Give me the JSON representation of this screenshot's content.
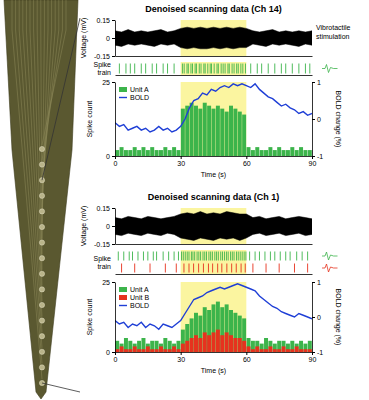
{
  "chart_data": [
    {
      "type": "area",
      "title": "Denoised scanning data (Ch 14)",
      "y_label": "Voltage (mV)",
      "color": "#000000",
      "xlim": [
        0,
        90
      ],
      "ylim": [
        -0.15,
        0.15
      ],
      "yticks": [
        -0.15,
        0,
        0.15
      ],
      "tick_labels": "y",
      "annotations": [
        {
          "text": "Vibrotactile stimulation",
          "x": [
            30,
            60
          ],
          "color": "#fbf5a0"
        }
      ],
      "x": [
        0,
        3,
        6,
        9,
        12,
        15,
        18,
        21,
        24,
        27,
        30,
        33,
        36,
        39,
        42,
        45,
        48,
        51,
        54,
        57,
        60,
        63,
        66,
        69,
        72,
        75,
        78,
        81,
        84,
        87,
        90
      ],
      "upper": [
        0.06,
        0.05,
        0.07,
        0.05,
        0.06,
        0.05,
        0.06,
        0.07,
        0.05,
        0.06,
        0.08,
        0.09,
        0.08,
        0.09,
        0.08,
        0.09,
        0.08,
        0.09,
        0.08,
        0.09,
        0.08,
        0.06,
        0.05,
        0.06,
        0.07,
        0.05,
        0.06,
        0.05,
        0.06,
        0.05,
        0.06
      ],
      "lower": [
        -0.06,
        -0.07,
        -0.05,
        -0.06,
        -0.05,
        -0.06,
        -0.07,
        -0.05,
        -0.06,
        -0.05,
        -0.08,
        -0.09,
        -0.08,
        -0.09,
        -0.09,
        -0.08,
        -0.09,
        -0.08,
        -0.09,
        -0.08,
        -0.08,
        -0.05,
        -0.06,
        -0.07,
        -0.05,
        -0.06,
        -0.05,
        -0.06,
        -0.07,
        -0.05,
        -0.06
      ]
    },
    {
      "type": "event",
      "y_label": "Spike train",
      "xlim": [
        0,
        90
      ],
      "tick_labels": false,
      "annotations": [
        {
          "x": [
            30,
            60
          ],
          "color": "#fbf5a0"
        }
      ],
      "series": [
        {
          "color": "#3cb44b",
          "x": [
            2,
            5,
            7,
            9,
            12,
            14,
            17,
            19,
            22,
            24,
            27,
            30.8,
            31.6,
            32.9,
            33.5,
            34.7,
            35.4,
            36.6,
            37.2,
            38.5,
            39.3,
            40.6,
            41.2,
            42.4,
            43.5,
            44.1,
            45.3,
            46.6,
            47.2,
            48.5,
            49.4,
            50.3,
            51.6,
            52.2,
            53.5,
            54.4,
            55.6,
            56.3,
            57.5,
            58.4,
            59.6,
            62,
            65,
            67,
            70,
            73,
            76,
            78,
            81,
            84,
            87,
            89
          ]
        }
      ]
    },
    {
      "type": "bar",
      "x_label": "Time (s)",
      "y_label": "Spike count",
      "y2_label": "BOLD change (%)",
      "xlim": [
        0,
        90
      ],
      "xticks": [
        0,
        30,
        60,
        90
      ],
      "ylim": [
        0,
        25
      ],
      "yticks": [
        0,
        25
      ],
      "y2lim": [
        -1,
        1
      ],
      "y2ticks": [
        -1,
        0,
        1
      ],
      "legend": "upper left",
      "stacked": false,
      "annotations": [
        {
          "x": [
            30,
            60
          ],
          "color": "#fbf5a0"
        }
      ],
      "bins": [
        0,
        2,
        4,
        6,
        8,
        10,
        12,
        14,
        16,
        18,
        20,
        22,
        24,
        26,
        28,
        30,
        32,
        34,
        36,
        38,
        40,
        42,
        44,
        46,
        48,
        50,
        52,
        54,
        56,
        58,
        60,
        62,
        64,
        66,
        68,
        70,
        72,
        74,
        76,
        78,
        80,
        82,
        84,
        86,
        88,
        90
      ],
      "series": [
        {
          "name": "Unit A",
          "type": "bar",
          "color": "#3cb44b",
          "values": [
            2,
            3,
            2,
            2,
            3,
            2,
            3,
            2,
            3,
            2,
            2,
            3,
            2,
            3,
            2,
            16,
            17,
            18,
            17,
            16,
            18,
            17,
            16,
            17,
            16,
            15,
            17,
            16,
            15,
            14,
            3,
            2,
            3,
            2,
            2,
            3,
            2,
            3,
            2,
            2,
            3,
            2,
            3,
            2,
            2
          ]
        },
        {
          "name": "BOLD",
          "type": "line",
          "axis": "y2",
          "color": "#1f3fd6",
          "x": [
            0,
            2,
            4,
            6,
            8,
            10,
            12,
            14,
            16,
            18,
            20,
            22,
            24,
            26,
            28,
            30,
            32,
            34,
            36,
            38,
            40,
            42,
            44,
            46,
            48,
            50,
            52,
            54,
            56,
            58,
            60,
            62,
            64,
            66,
            68,
            70,
            72,
            74,
            76,
            78,
            80,
            82,
            84,
            86,
            88,
            90
          ],
          "values": [
            -0.1,
            -0.2,
            -0.15,
            -0.3,
            -0.25,
            -0.2,
            -0.3,
            -0.25,
            -0.35,
            -0.3,
            -0.2,
            -0.3,
            -0.25,
            -0.35,
            -0.3,
            -0.2,
            0.0,
            0.3,
            0.5,
            0.55,
            0.7,
            0.65,
            0.8,
            0.75,
            0.85,
            0.9,
            0.85,
            0.95,
            0.9,
            0.95,
            0.9,
            0.85,
            0.95,
            0.8,
            0.7,
            0.6,
            0.55,
            0.45,
            0.35,
            0.4,
            0.3,
            0.25,
            0.15,
            0.2,
            0.1,
            0.15
          ]
        }
      ]
    },
    {
      "type": "area",
      "title": "Denoised scanning data (Ch 1)",
      "y_label": "Voltage (mV)",
      "color": "#000000",
      "xlim": [
        0,
        90
      ],
      "ylim": [
        -0.15,
        0.15
      ],
      "yticks": [
        -0.15,
        0,
        0.15
      ],
      "tick_labels": "y",
      "annotations": [
        {
          "x": [
            30,
            60
          ],
          "color": "#fbf5a0"
        }
      ],
      "x": [
        0,
        3,
        6,
        9,
        12,
        15,
        18,
        21,
        24,
        27,
        30,
        33,
        36,
        39,
        42,
        45,
        48,
        51,
        54,
        57,
        60,
        63,
        66,
        69,
        72,
        75,
        78,
        81,
        84,
        87,
        90
      ],
      "upper": [
        0.07,
        0.06,
        0.08,
        0.07,
        0.06,
        0.08,
        0.07,
        0.06,
        0.07,
        0.08,
        0.1,
        0.11,
        0.1,
        0.12,
        0.1,
        0.11,
        0.1,
        0.12,
        0.11,
        0.1,
        0.1,
        0.07,
        0.08,
        0.06,
        0.07,
        0.08,
        0.06,
        0.07,
        0.08,
        0.07,
        0.06
      ],
      "lower": [
        -0.07,
        -0.08,
        -0.06,
        -0.07,
        -0.08,
        -0.06,
        -0.07,
        -0.08,
        -0.06,
        -0.07,
        -0.1,
        -0.11,
        -0.12,
        -0.1,
        -0.11,
        -0.12,
        -0.1,
        -0.11,
        -0.1,
        -0.12,
        -0.1,
        -0.07,
        -0.06,
        -0.08,
        -0.07,
        -0.06,
        -0.08,
        -0.07,
        -0.06,
        -0.08,
        -0.07
      ]
    },
    {
      "type": "event",
      "y_label": "Spike train",
      "xlim": [
        0,
        90
      ],
      "tick_labels": false,
      "annotations": [
        {
          "x": [
            30,
            60
          ],
          "color": "#fbf5a0"
        }
      ],
      "series": [
        {
          "color": "#3cb44b",
          "x": [
            1.5,
            4,
            6.5,
            8,
            10.5,
            13,
            15,
            17.5,
            19,
            22,
            24.5,
            27,
            29,
            30.4,
            31.2,
            32.1,
            33.0,
            33.8,
            34.9,
            35.6,
            36.4,
            37.5,
            38.3,
            39.1,
            40.2,
            41.0,
            41.8,
            42.9,
            43.7,
            44.5,
            45.6,
            46.4,
            47.2,
            48.3,
            49.1,
            50.0,
            50.9,
            51.7,
            52.8,
            53.6,
            54.4,
            55.5,
            56.3,
            57.2,
            58.1,
            59.0,
            59.8,
            61.5,
            64,
            66,
            68.5,
            71,
            73,
            75.5,
            78,
            80,
            83,
            85.5,
            88
          ]
        },
        {
          "color": "#e6321e",
          "x": [
            3,
            9,
            16,
            23,
            28,
            31.5,
            33.8,
            35.9,
            38.2,
            40.4,
            42.7,
            44.6,
            46.9,
            48.8,
            51.1,
            53.3,
            55.4,
            57.6,
            59.5,
            63,
            69,
            75,
            82,
            88
          ]
        }
      ]
    },
    {
      "type": "bar",
      "x_label": "Time (s)",
      "y_label": "Spike count",
      "y2_label": "BOLD change (%)",
      "xlim": [
        0,
        90
      ],
      "xticks": [
        0,
        30,
        60,
        90
      ],
      "ylim": [
        0,
        25
      ],
      "yticks": [
        0,
        25
      ],
      "y2lim": [
        -1,
        1
      ],
      "y2ticks": [
        -1,
        0,
        1
      ],
      "legend": "upper left",
      "stacked": false,
      "annotations": [
        {
          "x": [
            30,
            60
          ],
          "color": "#fbf5a0"
        }
      ],
      "bins": [
        0,
        2,
        4,
        6,
        8,
        10,
        12,
        14,
        16,
        18,
        20,
        22,
        24,
        26,
        28,
        30,
        32,
        34,
        36,
        38,
        40,
        42,
        44,
        46,
        48,
        50,
        52,
        54,
        56,
        58,
        60,
        62,
        64,
        66,
        68,
        70,
        72,
        74,
        76,
        78,
        80,
        82,
        84,
        86,
        88,
        90
      ],
      "series": [
        {
          "name": "Unit A",
          "type": "bar",
          "color": "#3cb44b",
          "values": [
            4,
            3,
            5,
            4,
            3,
            4,
            5,
            3,
            4,
            4,
            3,
            5,
            4,
            3,
            4,
            8,
            10,
            12,
            14,
            13,
            16,
            15,
            17,
            18,
            16,
            17,
            15,
            14,
            13,
            12,
            5,
            4,
            4,
            3,
            5,
            4,
            3,
            4,
            4,
            3,
            4,
            3,
            4,
            3,
            4
          ]
        },
        {
          "name": "Unit B",
          "type": "bar",
          "color": "#e6321e",
          "values": [
            1,
            2,
            1,
            1,
            2,
            1,
            1,
            2,
            1,
            1,
            2,
            1,
            1,
            2,
            1,
            3,
            4,
            5,
            6,
            5,
            7,
            6,
            7,
            8,
            6,
            7,
            6,
            5,
            5,
            4,
            2,
            1,
            2,
            1,
            1,
            2,
            1,
            1,
            2,
            1,
            1,
            2,
            1,
            1,
            1
          ]
        },
        {
          "name": "BOLD",
          "type": "line",
          "axis": "y2",
          "color": "#1f3fd6",
          "x": [
            0,
            2,
            4,
            6,
            8,
            10,
            12,
            14,
            16,
            18,
            20,
            22,
            24,
            26,
            28,
            30,
            32,
            34,
            36,
            38,
            40,
            42,
            44,
            46,
            48,
            50,
            52,
            54,
            56,
            58,
            60,
            62,
            64,
            66,
            68,
            70,
            72,
            74,
            76,
            78,
            80,
            82,
            84,
            86,
            88,
            90
          ],
          "values": [
            -0.1,
            -0.2,
            -0.15,
            -0.3,
            -0.2,
            -0.25,
            -0.15,
            -0.3,
            -0.2,
            -0.25,
            -0.35,
            -0.2,
            -0.25,
            -0.3,
            -0.2,
            -0.1,
            0.1,
            0.3,
            0.5,
            0.55,
            0.6,
            0.7,
            0.75,
            0.8,
            0.85,
            0.8,
            0.85,
            0.9,
            0.95,
            0.9,
            0.85,
            0.8,
            0.75,
            0.6,
            0.5,
            0.4,
            0.3,
            0.25,
            0.15,
            0.1,
            0.05,
            0.0,
            0.1,
            0.05,
            0.0,
            -0.05
          ]
        }
      ]
    }
  ]
}
